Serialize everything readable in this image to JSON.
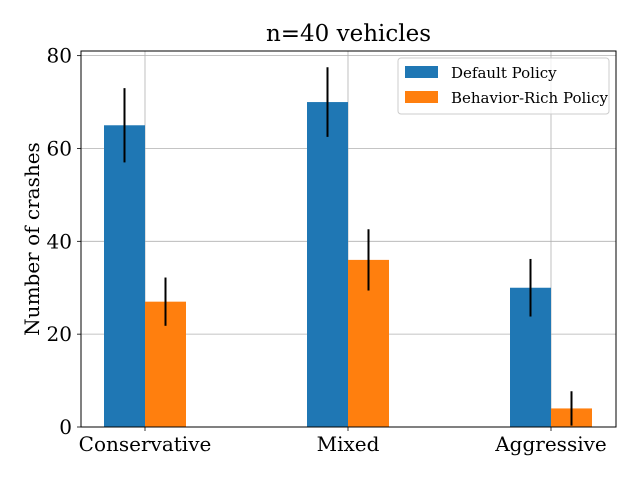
{
  "chart_data": {
    "type": "bar",
    "title": "n=40 vehicles",
    "xlabel": "",
    "ylabel": "Number of crashes",
    "categories": [
      "Conservative",
      "Mixed",
      "Aggressive"
    ],
    "ylim": [
      0,
      81
    ],
    "yticks": [
      0,
      20,
      40,
      60,
      80
    ],
    "grid": true,
    "legend_position": "top-right",
    "series": [
      {
        "name": "Default Policy",
        "color": "#1f77b4",
        "values": [
          65,
          70,
          30
        ],
        "error": [
          8,
          7.5,
          6.2
        ]
      },
      {
        "name": "Behavior-Rich Policy",
        "color": "#ff7f0e",
        "values": [
          27,
          36,
          4
        ],
        "error": [
          5.2,
          6.6,
          3.7
        ]
      }
    ]
  }
}
